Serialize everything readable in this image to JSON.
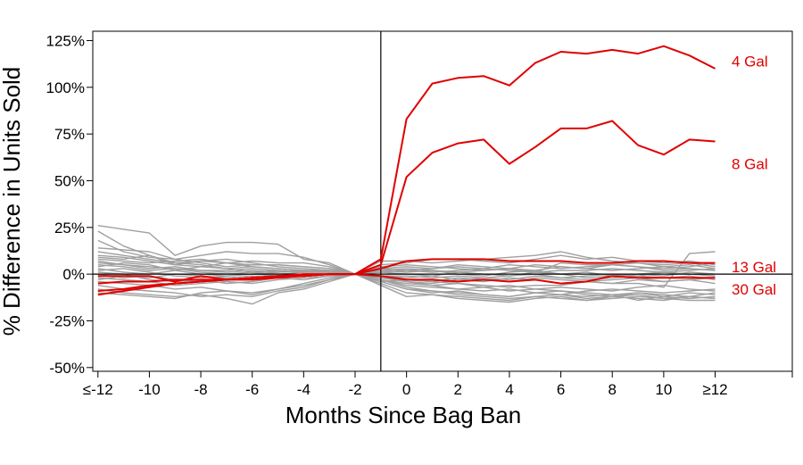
{
  "chart_data": {
    "type": "line",
    "title": "",
    "xlabel": "Months Since Bag Ban",
    "ylabel": "% Difference in Units Sold",
    "xlim": [
      -12.2,
      15
    ],
    "ylim": [
      -52,
      130
    ],
    "x": [
      -12,
      -11,
      -10,
      -9,
      -8,
      -7,
      -6,
      -5,
      -4,
      -3,
      -2,
      -1,
      0,
      1,
      2,
      3,
      4,
      5,
      6,
      7,
      8,
      9,
      10,
      11,
      12
    ],
    "x_ticks": [
      {
        "value": -12,
        "label": "≤-12"
      },
      {
        "value": -10,
        "label": "-10"
      },
      {
        "value": -8,
        "label": "-8"
      },
      {
        "value": -6,
        "label": "-6"
      },
      {
        "value": -4,
        "label": "-4"
      },
      {
        "value": -2,
        "label": "-2"
      },
      {
        "value": 0,
        "label": "0"
      },
      {
        "value": 2,
        "label": "2"
      },
      {
        "value": 4,
        "label": "4"
      },
      {
        "value": 6,
        "label": "6"
      },
      {
        "value": 8,
        "label": "8"
      },
      {
        "value": 10,
        "label": "10"
      },
      {
        "value": 12,
        "label": "≥12"
      }
    ],
    "y_ticks": [
      {
        "value": 125,
        "label": "125%"
      },
      {
        "value": 100,
        "label": "100%"
      },
      {
        "value": 75,
        "label": "75%"
      },
      {
        "value": 50,
        "label": "50%"
      },
      {
        "value": 25,
        "label": "25%"
      },
      {
        "value": 0,
        "label": "0%"
      },
      {
        "value": -25,
        "label": "-25%"
      },
      {
        "value": -50,
        "label": "-50%"
      }
    ],
    "vertical_line_x": -1,
    "horizontal_line_y": 0,
    "highlight_color": "#e00000",
    "background_color": "#a0a0a0",
    "series": [
      {
        "name": "4 Gal",
        "color": "#e00000",
        "label_y": 114,
        "values": [
          -11,
          -9,
          -7,
          -5,
          -4,
          -3,
          -2,
          -1,
          -1,
          0,
          0,
          8,
          83,
          102,
          105,
          106,
          101,
          113,
          119,
          118,
          120,
          118,
          122,
          117,
          110
        ]
      },
      {
        "name": "8 Gal",
        "color": "#e00000",
        "label_y": 59,
        "values": [
          -9,
          -8,
          -6,
          -5,
          -4,
          -3,
          -3,
          -2,
          -1,
          0,
          0,
          5,
          52,
          65,
          70,
          72,
          59,
          68,
          78,
          78,
          82,
          69,
          64,
          72,
          71
        ]
      },
      {
        "name": "13 Gal",
        "color": "#e00000",
        "label_y": 4,
        "values": [
          -5,
          -4,
          -4,
          -3,
          -3,
          -3,
          -2,
          -1,
          -1,
          0,
          0,
          3,
          7,
          8,
          8,
          8,
          7,
          7,
          7,
          6,
          6,
          7,
          7,
          6,
          6
        ]
      },
      {
        "name": "30 Gal",
        "color": "#e00000",
        "label_y": -8,
        "values": [
          -1,
          -1,
          -1,
          -4,
          -1,
          -3,
          -2,
          -1,
          0,
          0,
          0,
          -1,
          -3,
          -3,
          -4,
          -3,
          -4,
          -3,
          -5,
          -4,
          -1,
          -2,
          -2,
          -2,
          -2
        ]
      }
    ],
    "background_series": [
      {
        "values": [
          26,
          24,
          22,
          10,
          15,
          17,
          17,
          16,
          8,
          6,
          0,
          -4,
          -3,
          -4,
          -5,
          -6,
          -7,
          -6,
          -6,
          -4,
          -5,
          -5,
          -7,
          11,
          12
        ]
      },
      {
        "values": [
          23,
          15,
          10,
          5,
          7,
          6,
          7,
          6,
          6,
          4,
          0,
          4,
          5,
          4,
          3,
          2,
          3,
          1,
          6,
          5,
          5,
          4,
          2,
          3,
          2
        ]
      },
      {
        "values": [
          18,
          12,
          9,
          8,
          6,
          4,
          5,
          5,
          4,
          3,
          0,
          5,
          6,
          8,
          8,
          7,
          6,
          8,
          10,
          8,
          9,
          7,
          6,
          7,
          5
        ]
      },
      {
        "values": [
          14,
          13,
          12,
          8,
          10,
          12,
          11,
          11,
          9,
          5,
          0,
          7,
          7,
          6,
          7,
          8,
          9,
          10,
          12,
          9,
          7,
          6,
          5,
          6,
          4
        ]
      },
      {
        "values": [
          12,
          10,
          8,
          6,
          5,
          3,
          4,
          3,
          2,
          2,
          0,
          2,
          1,
          2,
          0,
          -1,
          1,
          2,
          0,
          1,
          -1,
          0,
          1,
          0,
          -1
        ]
      },
      {
        "values": [
          10,
          9,
          7,
          5,
          4,
          6,
          5,
          5,
          4,
          3,
          0,
          3,
          2,
          1,
          2,
          3,
          2,
          1,
          2,
          2,
          3,
          2,
          1,
          2,
          3
        ]
      },
      {
        "values": [
          8,
          7,
          6,
          7,
          8,
          6,
          4,
          3,
          2,
          1,
          0,
          -2,
          -4,
          -5,
          -3,
          -4,
          -2,
          -3,
          -5,
          -4,
          -3,
          -2,
          -4,
          -3,
          -5
        ]
      },
      {
        "values": [
          7,
          5,
          4,
          3,
          2,
          2,
          3,
          2,
          1,
          2,
          0,
          -3,
          -6,
          -7,
          -8,
          -9,
          -8,
          -10,
          -11,
          -9,
          -8,
          -9,
          -10,
          -9,
          -8
        ]
      },
      {
        "values": [
          5,
          4,
          2,
          3,
          1,
          0,
          1,
          0,
          1,
          1,
          0,
          1,
          2,
          3,
          4,
          3,
          5,
          4,
          3,
          4,
          5,
          6,
          4,
          3,
          2
        ]
      },
      {
        "values": [
          4,
          6,
          5,
          2,
          0,
          -1,
          0,
          1,
          2,
          1,
          0,
          -1,
          -2,
          -1,
          -3,
          -2,
          -1,
          0,
          -2,
          -1,
          0,
          -1,
          1,
          0,
          -1
        ]
      },
      {
        "values": [
          2,
          3,
          1,
          -1,
          -2,
          -1,
          0,
          -1,
          0,
          0,
          0,
          -4,
          -8,
          -9,
          -10,
          -11,
          -12,
          -10,
          -9,
          -11,
          -12,
          -10,
          -11,
          -12,
          -10
        ]
      },
      {
        "values": [
          0,
          -2,
          -1,
          -3,
          -4,
          -2,
          -3,
          -2,
          -1,
          0,
          0,
          -5,
          -10,
          -11,
          -12,
          -13,
          -14,
          -12,
          -13,
          -14,
          -12,
          -11,
          -13,
          -12,
          -13
        ]
      },
      {
        "values": [
          -2,
          -3,
          -4,
          -6,
          -5,
          -4,
          -5,
          -3,
          -2,
          -1,
          0,
          -3,
          -5,
          -6,
          -8,
          -7,
          -9,
          -8,
          -7,
          -8,
          -9,
          -7,
          -6,
          -8,
          -9
        ]
      },
      {
        "values": [
          -4,
          -5,
          -6,
          -8,
          -7,
          -9,
          -10,
          -8,
          -5,
          -2,
          0,
          -2,
          -4,
          -6,
          -5,
          -7,
          -6,
          -8,
          -9,
          -10,
          -11,
          -14,
          -12,
          -10,
          -11
        ]
      },
      {
        "values": [
          -6,
          -8,
          -9,
          -10,
          -12,
          -11,
          -12,
          -9,
          -7,
          -3,
          0,
          -3,
          -7,
          -9,
          -11,
          -12,
          -13,
          -12,
          -11,
          -13,
          -12,
          -13,
          -14,
          -12,
          -13
        ]
      },
      {
        "values": [
          -8,
          -10,
          -11,
          -12,
          -11,
          -13,
          -16,
          -10,
          -8,
          -4,
          0,
          -6,
          -12,
          -11,
          -13,
          -14,
          -15,
          -13,
          -12,
          -14,
          -13,
          -12,
          -13,
          -14,
          -14
        ]
      },
      {
        "values": [
          -10,
          -11,
          -12,
          -13,
          -10,
          -9,
          -11,
          -8,
          -6,
          -3,
          0,
          -4,
          -8,
          -10,
          -9,
          -11,
          -12,
          -10,
          -11,
          -12,
          -11,
          -10,
          -12,
          -13,
          -12
        ]
      },
      {
        "values": [
          3,
          1,
          0,
          2,
          4,
          3,
          1,
          2,
          1,
          1,
          0,
          2,
          3,
          2,
          1,
          2,
          3,
          2,
          4,
          3,
          2,
          3,
          4,
          5,
          3
        ]
      },
      {
        "values": [
          6,
          5,
          3,
          4,
          2,
          1,
          2,
          1,
          2,
          1,
          0,
          3,
          4,
          3,
          5,
          4,
          3,
          5,
          4,
          3,
          5,
          4,
          3,
          4,
          6
        ]
      },
      {
        "values": [
          -3,
          -1,
          -2,
          0,
          -1,
          -2,
          -1,
          -2,
          -1,
          0,
          0,
          -2,
          -3,
          -4,
          -2,
          -3,
          -4,
          -2,
          -3,
          -4,
          -5,
          -3,
          -4,
          -3,
          -2
        ]
      },
      {
        "values": [
          9,
          8,
          10,
          6,
          7,
          8,
          6,
          4,
          3,
          2,
          0,
          1,
          0,
          -1,
          1,
          0,
          -1,
          1,
          0,
          -2,
          -1,
          0,
          -1,
          1,
          0
        ]
      },
      {
        "values": [
          1,
          0,
          -3,
          -4,
          -3,
          -5,
          -4,
          -2,
          -3,
          -1,
          0,
          -1,
          -1,
          -2,
          -1,
          -2,
          -3,
          -1,
          -2,
          -3,
          -2,
          -1,
          -2,
          -1,
          -3
        ]
      }
    ]
  }
}
